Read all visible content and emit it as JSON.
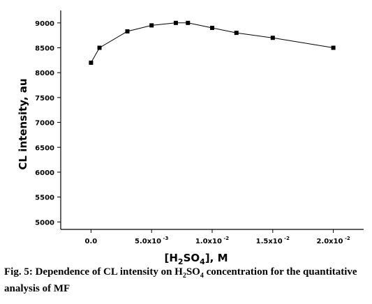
{
  "chart_data": {
    "type": "line",
    "ylabel": "CL intensity, au",
    "xlabel_parts": {
      "open": "[H",
      "sub1": "2",
      "mid": "SO",
      "sub2": "4",
      "close": "], M"
    },
    "x_ticks": [
      {
        "value": 0.0,
        "label": "0.0",
        "exp": ""
      },
      {
        "value": 0.005,
        "label": "5.0x10",
        "exp": "-3"
      },
      {
        "value": 0.01,
        "label": "1.0x10",
        "exp": "-2"
      },
      {
        "value": 0.015,
        "label": "1.5x10",
        "exp": "-2"
      },
      {
        "value": 0.02,
        "label": "2.0x10",
        "exp": "-2"
      }
    ],
    "y_ticks": [
      5000,
      5500,
      6000,
      6500,
      7000,
      7500,
      8000,
      8500,
      9000
    ],
    "xlim": [
      -0.0025,
      0.0225
    ],
    "ylim": [
      4850,
      9250
    ],
    "series": [
      {
        "marker": "square",
        "x": [
          0.0,
          0.0007,
          0.003,
          0.005,
          0.007,
          0.008,
          0.01,
          0.012,
          0.015,
          0.02
        ],
        "y": [
          8200,
          8500,
          8830,
          8950,
          9000,
          9000,
          8900,
          8800,
          8700,
          8500
        ]
      }
    ]
  },
  "caption": {
    "prefix": "Fig. 5: Dependence of CL intensity on H",
    "sub1": "2",
    "mid": "SO",
    "sub2": "4",
    "suffix": " concentration for the quantitative analysis of MF"
  }
}
